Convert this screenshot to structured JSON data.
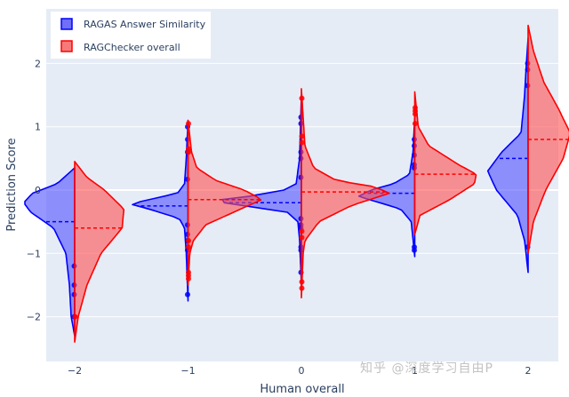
{
  "chart_data": {
    "type": "violin",
    "title": "",
    "xlabel": "Human overall",
    "ylabel": "Prediction Score",
    "x_ticks": [
      "-2",
      "-1",
      "0",
      "1",
      "2"
    ],
    "y_ticks": [
      "-2",
      "-1",
      "0",
      "1",
      "2"
    ],
    "xlim": [
      -2.25,
      2.25
    ],
    "ylim": [
      -2.7,
      2.85
    ],
    "grid": true,
    "legend_position": "top-left",
    "series": [
      {
        "name": "RAGAS Answer Similarity",
        "side": "negative",
        "color": "#0000ff",
        "fill": "rgba(80,80,255,0.6)",
        "groups": [
          {
            "x": -2,
            "mean": -0.5,
            "ymin": -2.3,
            "ymax": 0.35,
            "profile": [
              [
                -2.3,
                0
              ],
              [
                -2.0,
                0.02
              ],
              [
                -1.5,
                0.03
              ],
              [
                -1.0,
                0.05
              ],
              [
                -0.6,
                0.12
              ],
              [
                -0.35,
                0.25
              ],
              [
                -0.2,
                0.29
              ],
              [
                -0.05,
                0.24
              ],
              [
                0.1,
                0.1
              ],
              [
                0.25,
                0.04
              ],
              [
                0.35,
                0
              ]
            ],
            "points": [
              -1.2,
              -1.5,
              -1.65,
              -2.0
            ]
          },
          {
            "x": -1,
            "mean": -0.25,
            "ymin": -1.75,
            "ymax": 1.1,
            "profile": [
              [
                -1.75,
                0
              ],
              [
                -1.0,
                0.01
              ],
              [
                -0.6,
                0.02
              ],
              [
                -0.45,
                0.05
              ],
              [
                -0.3,
                0.22
              ],
              [
                -0.22,
                0.33
              ],
              [
                -0.15,
                0.22
              ],
              [
                -0.05,
                0.06
              ],
              [
                0.1,
                0.02
              ],
              [
                0.5,
                0.01
              ],
              [
                1.1,
                0
              ]
            ],
            "points": [
              1.0,
              0.8,
              0.6,
              0.17,
              -0.55,
              -0.7,
              -0.8,
              -0.95,
              -1.65
            ]
          },
          {
            "x": 0,
            "mean": -0.2,
            "ymin": -1.5,
            "ymax": 1.5,
            "profile": [
              [
                -1.5,
                0
              ],
              [
                -0.8,
                0.01
              ],
              [
                -0.5,
                0.02
              ],
              [
                -0.35,
                0.08
              ],
              [
                -0.25,
                0.32
              ],
              [
                -0.17,
                0.51
              ],
              [
                -0.1,
                0.3
              ],
              [
                0.0,
                0.1
              ],
              [
                0.1,
                0.03
              ],
              [
                0.5,
                0.01
              ],
              [
                1.5,
                0
              ]
            ],
            "points": [
              1.15,
              1.05,
              0.6,
              0.5,
              0.2,
              -0.45,
              -0.55,
              -0.6,
              -0.9,
              -0.95,
              -1.3
            ]
          },
          {
            "x": 1,
            "mean": -0.05,
            "ymin": -1.05,
            "ymax": 1.15,
            "profile": [
              [
                -1.05,
                0
              ],
              [
                -0.5,
                0.02
              ],
              [
                -0.3,
                0.08
              ],
              [
                -0.2,
                0.2
              ],
              [
                -0.1,
                0.32
              ],
              [
                0.0,
                0.25
              ],
              [
                0.1,
                0.12
              ],
              [
                0.25,
                0.03
              ],
              [
                0.6,
                0.01
              ],
              [
                1.15,
                0
              ]
            ],
            "points": [
              0.8,
              0.7,
              0.55,
              0.4,
              0.35,
              -0.9,
              -0.95
            ]
          },
          {
            "x": 2,
            "mean": 0.5,
            "ymin": -1.3,
            "ymax": 2.4,
            "profile": [
              [
                -1.3,
                0
              ],
              [
                -0.8,
                0.02
              ],
              [
                -0.4,
                0.06
              ],
              [
                0.0,
                0.18
              ],
              [
                0.3,
                0.23
              ],
              [
                0.6,
                0.15
              ],
              [
                0.9,
                0.04
              ],
              [
                1.5,
                0.02
              ],
              [
                2.0,
                0.01
              ],
              [
                2.4,
                0
              ]
            ],
            "points": [
              2.0,
              1.9,
              1.65,
              -0.9
            ]
          }
        ]
      },
      {
        "name": "RAGChecker overall",
        "side": "positive",
        "color": "#ff0000",
        "fill": "rgba(255,80,80,0.6)",
        "groups": [
          {
            "x": -2,
            "mean": -0.6,
            "ymin": -2.4,
            "ymax": 0.45,
            "profile": [
              [
                -2.4,
                0
              ],
              [
                -2.0,
                0.02
              ],
              [
                -1.5,
                0.07
              ],
              [
                -1.0,
                0.15
              ],
              [
                -0.6,
                0.27
              ],
              [
                -0.3,
                0.28
              ],
              [
                0.0,
                0.17
              ],
              [
                0.2,
                0.07
              ],
              [
                0.45,
                0
              ]
            ],
            "points": [
              -2.0
            ]
          },
          {
            "x": -1,
            "mean": -0.15,
            "ymin": -1.5,
            "ymax": 1.1,
            "profile": [
              [
                -1.5,
                0
              ],
              [
                -1.0,
                0.01
              ],
              [
                -0.8,
                0.03
              ],
              [
                -0.55,
                0.1
              ],
              [
                -0.3,
                0.3
              ],
              [
                -0.15,
                0.42
              ],
              [
                0.0,
                0.32
              ],
              [
                0.15,
                0.16
              ],
              [
                0.35,
                0.05
              ],
              [
                0.6,
                0.02
              ],
              [
                1.1,
                0
              ]
            ],
            "points": [
              1.05,
              0.65,
              0.6,
              -0.8,
              -0.9,
              -1.3,
              -1.35,
              -1.4
            ]
          },
          {
            "x": 0,
            "mean": -0.03,
            "ymin": -1.7,
            "ymax": 1.6,
            "profile": [
              [
                -1.7,
                0
              ],
              [
                -1.0,
                0.01
              ],
              [
                -0.8,
                0.02
              ],
              [
                -0.5,
                0.1
              ],
              [
                -0.25,
                0.28
              ],
              [
                -0.05,
                0.5
              ],
              [
                0.05,
                0.42
              ],
              [
                0.15,
                0.2
              ],
              [
                0.35,
                0.07
              ],
              [
                0.7,
                0.02
              ],
              [
                1.6,
                0
              ]
            ],
            "points": [
              1.45,
              0.85,
              0.75,
              -0.65,
              -0.75,
              -1.45,
              -1.55
            ]
          },
          {
            "x": 1,
            "mean": 0.25,
            "ymin": -0.7,
            "ymax": 1.55,
            "profile": [
              [
                -0.7,
                0
              ],
              [
                -0.4,
                0.03
              ],
              [
                -0.15,
                0.2
              ],
              [
                0.1,
                0.34
              ],
              [
                0.25,
                0.35
              ],
              [
                0.4,
                0.25
              ],
              [
                0.7,
                0.08
              ],
              [
                1.0,
                0.02
              ],
              [
                1.55,
                0
              ]
            ],
            "points": [
              1.3,
              1.25,
              1.2,
              1.05
            ]
          },
          {
            "x": 2,
            "mean": 0.8,
            "ymin": -1.0,
            "ymax": 2.6,
            "profile": [
              [
                -1.0,
                0
              ],
              [
                -0.5,
                0.03
              ],
              [
                0.0,
                0.1
              ],
              [
                0.5,
                0.2
              ],
              [
                0.9,
                0.24
              ],
              [
                1.3,
                0.17
              ],
              [
                1.7,
                0.09
              ],
              [
                2.2,
                0.03
              ],
              [
                2.6,
                0
              ]
            ],
            "points": []
          }
        ]
      }
    ]
  },
  "legend": {
    "items": [
      {
        "label": "RAGAS Answer Similarity",
        "color": "#0000ff",
        "fill": "#6f6ff7"
      },
      {
        "label": "RAGChecker overall",
        "color": "#ff0000",
        "fill": "#f77a7a"
      }
    ]
  },
  "axes": {
    "x_title": "Human overall",
    "y_title": "Prediction Score"
  },
  "watermark": "知乎 @深度学习自由P"
}
